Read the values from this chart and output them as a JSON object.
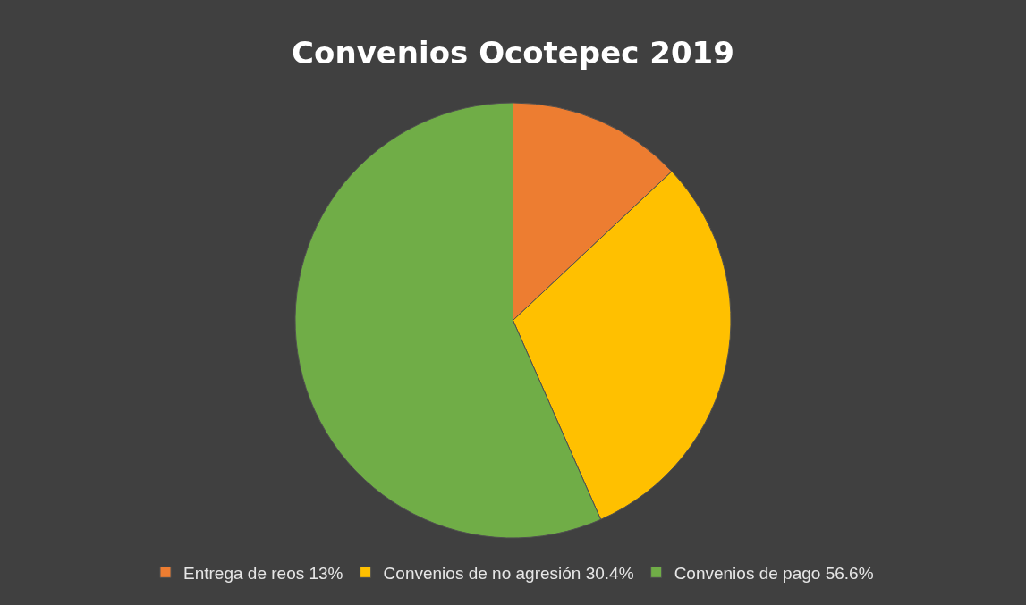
{
  "chart_data": {
    "type": "pie",
    "title": "Convenios Ocotepec 2019",
    "categories": [
      "Entrega de reos 13%",
      "Convenios de no agresión 30.4%",
      "Convenios de pago 56.6%"
    ],
    "values": [
      13,
      30.4,
      56.6
    ],
    "colors": [
      "#ed7d31",
      "#ffc000",
      "#70ad47"
    ],
    "legend": "bottom"
  }
}
